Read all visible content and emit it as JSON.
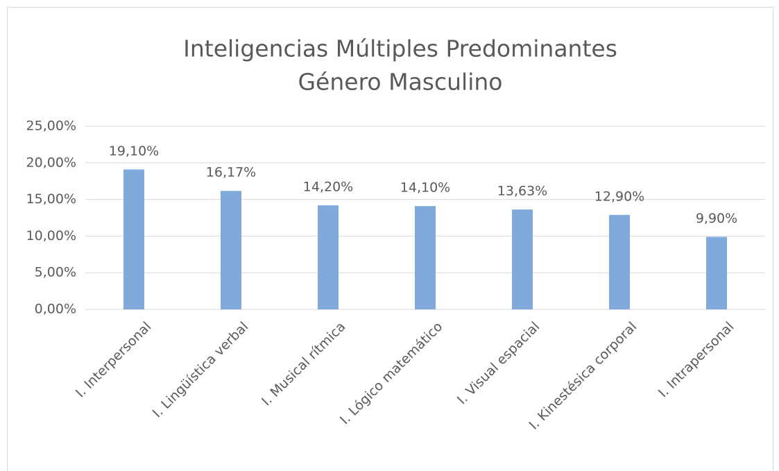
{
  "chart_data": {
    "type": "bar",
    "title": [
      "Inteligencias Múltiples Predominantes",
      "Género Masculino"
    ],
    "categories": [
      "I. Interpersonal",
      "I. Lingüística verbal",
      "I. Musical rítmica",
      "I. Lógico matemático",
      "I. Visual espacial",
      "I. Kinestésica corporal",
      "I. Intrapersonal"
    ],
    "values": [
      19.1,
      16.17,
      14.2,
      14.1,
      13.63,
      12.9,
      9.9
    ],
    "value_labels": [
      "19,10%",
      "16,17%",
      "14,20%",
      "14,10%",
      "13,63%",
      "12,90%",
      "9,90%"
    ],
    "color": "#7faadb",
    "ylim": [
      0,
      25
    ],
    "yticks": [
      {
        "value": 0,
        "label": "0,00%"
      },
      {
        "value": 5,
        "label": "5,00%"
      },
      {
        "value": 10,
        "label": "10,00%"
      },
      {
        "value": 15,
        "label": "15,00%"
      },
      {
        "value": 20,
        "label": "20,00%"
      },
      {
        "value": 25,
        "label": "25,00%"
      }
    ],
    "grid": true
  }
}
